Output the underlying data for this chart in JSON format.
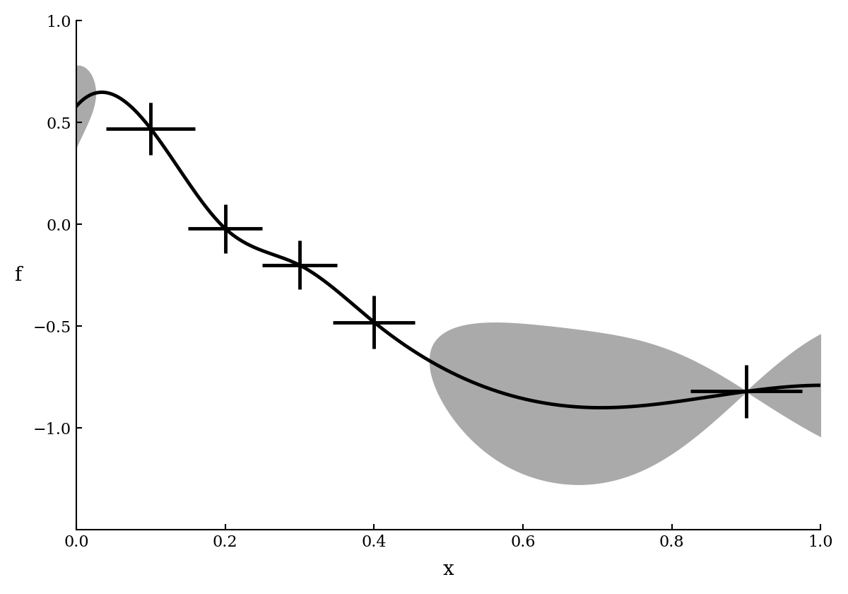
{
  "title": "",
  "xlabel": "x",
  "ylabel": "f",
  "xlim": [
    0,
    1
  ],
  "ylim": [
    -1.5,
    1
  ],
  "yticks": [
    -1.0,
    -0.5,
    0.0,
    0.5,
    1.0
  ],
  "xticks": [
    0.0,
    0.2,
    0.4,
    0.6,
    0.8,
    1.0
  ],
  "data_x": [
    0.1,
    0.2,
    0.3,
    0.4,
    0.9
  ],
  "data_y": [
    0.47,
    -0.02,
    -0.2,
    -0.48,
    -0.82
  ],
  "data_xerr": [
    0.06,
    0.05,
    0.05,
    0.055,
    0.075
  ],
  "data_yerr": [
    0.13,
    0.12,
    0.12,
    0.13,
    0.13
  ],
  "band_color": "#aaaaaa",
  "line_color": "#000000",
  "line_width": 3.5,
  "band_alpha": 1.0,
  "xlabel_fontsize": 20,
  "ylabel_fontsize": 20,
  "tick_fontsize": 16,
  "figsize": [
    12.0,
    8.4
  ],
  "dpi": 100,
  "cross_linewidth": 3.5,
  "mean_x": [
    0.0,
    0.1,
    0.2,
    0.3,
    0.4,
    0.55,
    0.7,
    0.9,
    1.0
  ],
  "mean_y": [
    0.58,
    0.47,
    -0.02,
    -0.2,
    -0.48,
    -0.8,
    -0.9,
    -0.82,
    -0.79
  ]
}
